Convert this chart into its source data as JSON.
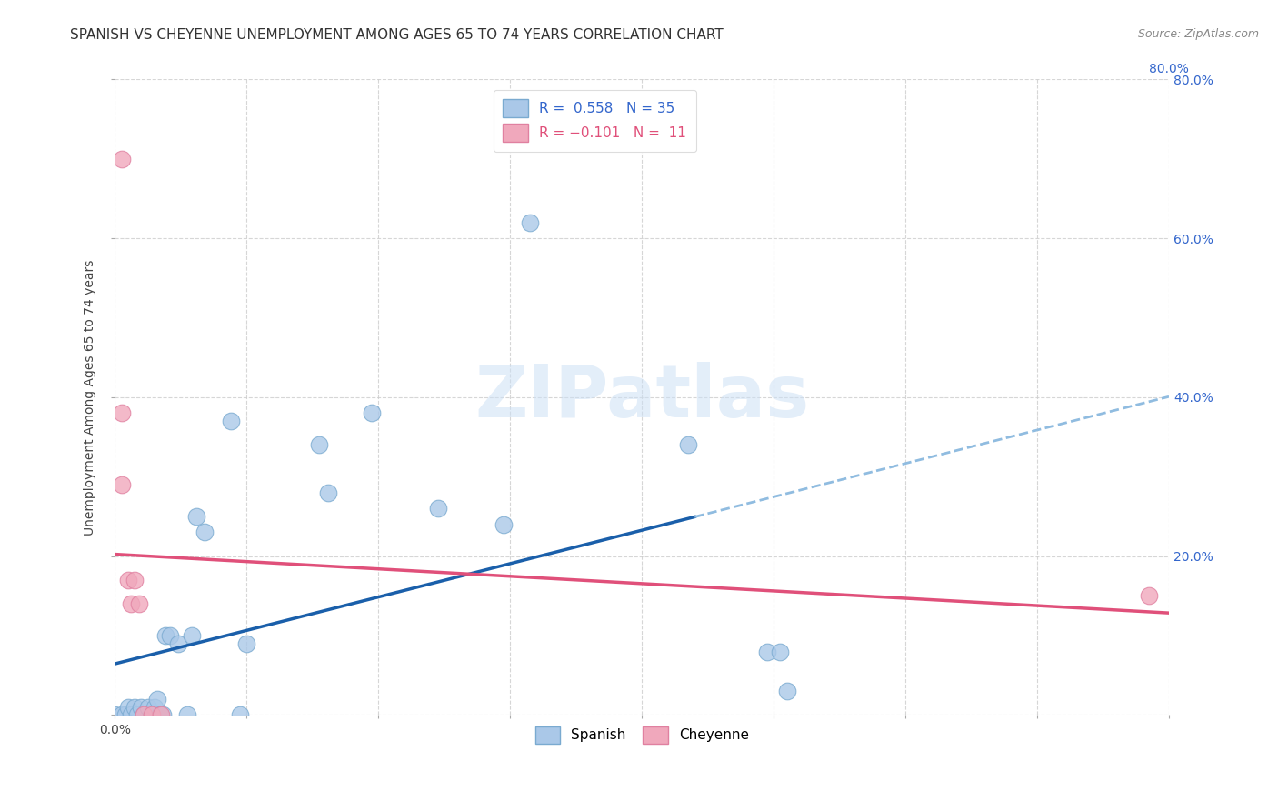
{
  "title": "SPANISH VS CHEYENNE UNEMPLOYMENT AMONG AGES 65 TO 74 YEARS CORRELATION CHART",
  "source": "Source: ZipAtlas.com",
  "ylabel": "Unemployment Among Ages 65 to 74 years",
  "xlabel": "",
  "watermark": "ZIPatlas",
  "xlim": [
    0,
    0.8
  ],
  "ylim": [
    0,
    0.8
  ],
  "xtick_vals": [
    0.0,
    0.1,
    0.2,
    0.3,
    0.4,
    0.5,
    0.6,
    0.7,
    0.8
  ],
  "ytick_vals": [
    0.0,
    0.2,
    0.4,
    0.6,
    0.8
  ],
  "spanish_color": "#aac8e8",
  "cheyenne_color": "#f0a8bc",
  "spanish_edge_color": "#7aaad0",
  "cheyenne_edge_color": "#e080a0",
  "spanish_line_color": "#1a5faa",
  "cheyenne_line_color": "#e0507a",
  "trendline_ext_color": "#90bce0",
  "spanish_R": 0.558,
  "spanish_N": 35,
  "cheyenne_R": -0.101,
  "cheyenne_N": 11,
  "spanish_points": [
    [
      0.0,
      0.0
    ],
    [
      0.005,
      0.0
    ],
    [
      0.008,
      0.0
    ],
    [
      0.01,
      0.01
    ],
    [
      0.012,
      0.0
    ],
    [
      0.015,
      0.01
    ],
    [
      0.017,
      0.0
    ],
    [
      0.02,
      0.01
    ],
    [
      0.022,
      0.0
    ],
    [
      0.025,
      0.01
    ],
    [
      0.028,
      0.0
    ],
    [
      0.03,
      0.01
    ],
    [
      0.032,
      0.02
    ],
    [
      0.034,
      0.0
    ],
    [
      0.036,
      0.0
    ],
    [
      0.038,
      0.1
    ],
    [
      0.042,
      0.1
    ],
    [
      0.048,
      0.09
    ],
    [
      0.055,
      0.0
    ],
    [
      0.058,
      0.1
    ],
    [
      0.062,
      0.25
    ],
    [
      0.068,
      0.23
    ],
    [
      0.088,
      0.37
    ],
    [
      0.095,
      0.0
    ],
    [
      0.1,
      0.09
    ],
    [
      0.155,
      0.34
    ],
    [
      0.162,
      0.28
    ],
    [
      0.195,
      0.38
    ],
    [
      0.245,
      0.26
    ],
    [
      0.295,
      0.24
    ],
    [
      0.315,
      0.62
    ],
    [
      0.435,
      0.34
    ],
    [
      0.495,
      0.08
    ],
    [
      0.505,
      0.08
    ],
    [
      0.51,
      0.03
    ]
  ],
  "cheyenne_points": [
    [
      0.005,
      0.7
    ],
    [
      0.005,
      0.38
    ],
    [
      0.005,
      0.29
    ],
    [
      0.01,
      0.17
    ],
    [
      0.012,
      0.14
    ],
    [
      0.015,
      0.17
    ],
    [
      0.018,
      0.14
    ],
    [
      0.022,
      0.0
    ],
    [
      0.028,
      0.0
    ],
    [
      0.035,
      0.0
    ],
    [
      0.785,
      0.15
    ]
  ],
  "background_color": "#ffffff",
  "grid_color": "#cccccc",
  "title_fontsize": 11,
  "axis_fontsize": 10,
  "tick_fontsize": 10,
  "legend_fontsize": 11,
  "marker_size": 180,
  "right_tick_color": "#3366cc"
}
